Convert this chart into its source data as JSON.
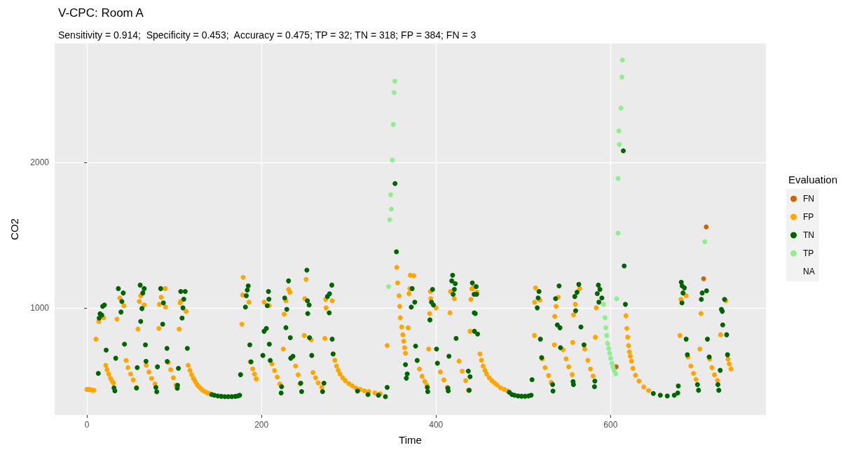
{
  "chart_data": {
    "type": "scatter",
    "title": "V-CPC: Room A",
    "subtitle": "Sensitivity = 0.914;  Specificity = 0.453;  Accuracy = 0.475; TP = 32; TN = 318; FP = 384; FN = 3",
    "xlabel": "Time",
    "ylabel": "CO2",
    "legend_title": "Evaluation",
    "legend": "right",
    "grid": true,
    "marker": "circle",
    "xlim": [
      -37,
      778
    ],
    "xticks": [
      0,
      200,
      400,
      600
    ],
    "ylim": [
      264,
      2816
    ],
    "yticks": [
      1000,
      2000
    ],
    "series": [
      {
        "name": "FN",
        "color": "#cd6600",
        "x": [
          606.4,
          706.6,
          709.6
        ],
        "values": [
          595,
          1200,
          1556
        ]
      },
      {
        "name": "FP",
        "color": "#ffa500",
        "x": [
          0,
          2,
          4,
          6,
          8,
          10.4,
          13.6,
          19,
          21.6,
          23,
          25,
          27,
          29,
          30.4,
          34.4,
          37.6,
          42.4,
          44.8,
          47,
          50,
          53,
          56.8,
          58.4,
          60,
          61.6,
          65.6,
          68,
          71,
          74,
          78,
          82.4,
          83,
          85,
          89.6,
          90,
          93,
          96,
          99,
          102,
          105.6,
          106.8,
          107.5,
          113.6,
          116,
          118,
          120,
          122,
          124,
          126,
          128,
          130,
          132,
          135,
          138,
          141,
          177.6,
          178.4,
          179,
          185.6,
          187,
          190,
          192,
          194,
          203,
          208.8,
          212,
          215,
          218,
          221,
          225,
          226,
          228,
          231,
          232.5,
          236,
          239,
          242,
          244,
          249,
          249.6,
          251,
          257,
          259,
          262,
          265,
          269,
          272.6,
          273.6,
          274,
          281,
          282.4,
          284,
          286,
          288,
          290,
          293,
          296,
          300,
          304,
          308,
          313,
          318,
          323,
          330,
          336,
          344,
          355,
          356,
          357.6,
          358.4,
          359,
          360.6,
          362,
          363,
          364,
          365,
          368,
          369,
          370,
          370.5,
          374.6,
          378.4,
          381,
          384,
          387,
          389.6,
          391.6,
          392.6,
          393.6,
          394,
          400,
          401.6,
          405,
          409,
          412.8,
          416,
          416.6,
          421,
          426.4,
          430,
          434,
          437,
          439,
          440,
          441,
          442.5,
          447,
          450.4,
          452,
          454,
          456,
          458,
          461,
          464,
          467,
          470,
          474,
          478,
          482,
          512.8,
          513,
          514,
          519,
          521.6,
          525,
          529,
          532,
          535.6,
          536,
          537.6,
          540,
          545.6,
          549,
          552,
          556,
          556.6,
          557.6,
          559.6,
          564.6,
          570.4,
          574,
          577,
          580,
          582.6,
          583.6,
          617.6,
          618.6,
          619.6,
          620.6,
          621.6,
          622.6,
          624,
          625.6,
          628.6,
          632.6,
          638,
          643.6,
          679.5,
          680.6,
          686.6,
          688.6,
          692,
          695,
          698,
          702.4,
          703.6,
          713.6,
          716,
          719,
          722.6,
          726,
          732,
          734.6,
          736,
          738
        ],
        "values": [
          440,
          440,
          438,
          435,
          435,
          785,
          907,
          932,
          605,
          575,
          545,
          515,
          495,
          483,
          922,
          1068,
          1015,
          639,
          590,
          545,
          505,
          454,
          854,
          1044,
          1083,
          1020,
          605,
          560,
          515,
          478,
          859,
          1024,
          1073,
          1132,
          1005,
          624,
          575,
          520,
          468,
          854,
          1034,
          1044,
          976,
          605,
          570,
          540,
          515,
          495,
          475,
          460,
          448,
          436,
          425,
          416,
          410,
          888,
          1088,
          1210,
          1039,
          629,
          580,
          545,
          512,
          1039,
          1015,
          615,
          570,
          525,
          478,
          717,
          956,
          1049,
          1127,
          1107,
          663,
          600,
          540,
          478,
          810,
          1063,
          1195,
          781,
          556,
          520,
          485,
          454,
          790,
          1058,
          1000,
          1049,
          683,
          640,
          600,
          570,
          545,
          520,
          500,
          480,
          465,
          450,
          440,
          430,
          425,
          415,
          410,
          741,
          1278,
          1171,
          1083,
          1010,
          932,
          868,
          815,
          771,
          727,
          688,
          863,
          1098,
          1132,
          1224,
          1220,
          639,
          580,
          530,
          495,
          468,
          717,
          961,
          1112,
          1063,
          1000,
          620,
          560,
          505,
          454,
          966,
          1112,
          1063,
          634,
          565,
          500,
          434,
          839,
          1058,
          1130,
          1137,
          1107,
          683,
          640,
          600,
          570,
          545,
          520,
          500,
          485,
          470,
          450,
          440,
          430,
          810,
          1039,
          1137,
          1054,
          650,
          590,
          535,
          488,
          746,
          941,
          1010,
          1073,
          712,
          650,
          595,
          541,
          763,
          951,
          1024,
          1132,
          717,
          640,
          580,
          532,
          798,
          1000,
          946,
          859,
          798,
          741,
          698,
          668,
          634,
          585,
          537,
          497,
          456,
          432,
          810,
          1058,
          1083,
          663,
          600,
          550,
          508,
          717,
          961,
          649,
          590,
          540,
          502,
          815,
          1049,
          648,
          615,
          580
        ]
      },
      {
        "name": "TN",
        "color": "#006400",
        "x": [
          13,
          14,
          15,
          17,
          18,
          20,
          22,
          31,
          32,
          33,
          36,
          39,
          40,
          41.6,
          43,
          56.8,
          57.6,
          61,
          61.6,
          63,
          64,
          65.6,
          67,
          67.7,
          79,
          80,
          80.8,
          84.5,
          86.8,
          87.6,
          91.7,
          92,
          103.5,
          103.8,
          104.8,
          107.5,
          109,
          110,
          111,
          112.6,
          115,
          143,
          146,
          150,
          154,
          158,
          162,
          166,
          170,
          173,
          175,
          176,
          181.6,
          182.6,
          183.7,
          184.8,
          186.6,
          188,
          201.6,
          203,
          205.6,
          206.6,
          208,
          208.5,
          209,
          210,
          222.5,
          223,
          226.6,
          228,
          229,
          231,
          233,
          233.5,
          236,
          245,
          246,
          252,
          252.6,
          253,
          254.6,
          255,
          257.6,
          270,
          271.6,
          275.6,
          277.6,
          278,
          280.6,
          281,
          282,
          310,
          322,
          334,
          342,
          344,
          353,
          354.6,
          365,
          366,
          367,
          371.6,
          372.6,
          375.6,
          376.6,
          378.4,
          390,
          390.5,
          393,
          394.8,
          396,
          397,
          400.6,
          401.6,
          413.6,
          414,
          414.8,
          418,
          419,
          419.6,
          421,
          422,
          423,
          437,
          438,
          439,
          441.6,
          443.6,
          443.8,
          444,
          445,
          446,
          446.5,
          447.6,
          484,
          487,
          490,
          494,
          498,
          502,
          506,
          509,
          510,
          516,
          517,
          518,
          519.6,
          521,
          533.6,
          534,
          537,
          539,
          541,
          542,
          542.6,
          557,
          557.5,
          559,
          560,
          561.6,
          563.6,
          566,
          569.6,
          581.6,
          582,
          584.8,
          586,
          586.6,
          587.8,
          590,
          614.6,
          615.6,
          617,
          649,
          657,
          665,
          673,
          677,
          677.6,
          681,
          681.8,
          682,
          683,
          684.6,
          686.6,
          688,
          699.6,
          700.8,
          704,
          705,
          710,
          711,
          713,
          723,
          724,
          725.6,
          727,
          728,
          728.5,
          730.6,
          733,
          734
        ],
        "values": [
          550,
          930,
          960,
          950,
          1010,
          1020,
          710,
          450,
          430,
          654,
          1132,
          971,
          1044,
          1102,
          751,
          449,
          590,
          1156,
          907,
          995,
          1102,
          1132,
          746,
          633,
          454,
          424,
          595,
          1132,
          888,
          1034,
          722,
          632,
          448,
          468,
          585,
          1112,
          930,
          1000,
          1059,
          1112,
          722,
          405,
          400,
          395,
          392,
          390,
          390,
          390,
          392,
          395,
          400,
          541,
          1005,
          1083,
          1122,
          1151,
          746,
          629,
          673,
          839,
          859,
          1015,
          1112,
          1059,
          751,
          639,
          415,
          459,
          1068,
          864,
          990,
          1185,
          795,
          654,
          668,
          483,
          425,
          1259,
          1049,
          961,
          1020,
          795,
          673,
          425,
          483,
          1078,
          966,
          1097,
          1156,
          785,
          683,
          429,
          405,
          400,
          390,
          454,
          1854,
          1385,
          610,
          517,
          546,
          1005,
          1132,
          1039,
          737,
          639,
          454,
          425,
          917,
          1039,
          1127,
          1020,
          717,
          620,
          449,
          430,
          668,
          1185,
          1224,
          1093,
          1127,
          1166,
          790,
          566,
          434,
          527,
          1171,
          1093,
          966,
          839,
          961,
          1146,
          1093,
          820,
          420,
          405,
          400,
          395,
          393,
          393,
          395,
          400,
          507,
          1000,
          1068,
          1112,
          785,
          658,
          473,
          429,
          1063,
          883,
          1151,
          863,
          727,
          493,
          473,
          1078,
          980,
          1107,
          1161,
          868,
          746,
          459,
          497,
          1098,
          1156,
          1039,
          1127,
          1068,
          2078,
          1288,
          1024,
          412,
          400,
          395,
          400,
          415,
          463,
          1176,
          1034,
          1151,
          1102,
          1137,
          785,
          678,
          473,
          434,
          1058,
          1102,
          1117,
          785,
          663,
          473,
          434,
          571,
          990,
          976,
          883,
          1058,
          815,
          678
        ]
      },
      {
        "name": "TP",
        "color": "#90ee90",
        "x": [
          345.6,
          347,
          348,
          348.8,
          350,
          351,
          352,
          352.8,
          592,
          593.6,
          594.6,
          595.6,
          596.6,
          598,
          599,
          600,
          601.6,
          602.6,
          604,
          606,
          607,
          608.6,
          608.6,
          609.6,
          610,
          612,
          613,
          613.6,
          708
        ],
        "values": [
          1146,
          1605,
          1776,
          1678,
          2015,
          2259,
          2478,
          2556,
          1024,
          932,
          863,
          810,
          756,
          722,
          688,
          654,
          620,
          595,
          571,
          546,
          1063,
          1512,
          1888,
          2215,
          2122,
          2371,
          2585,
          2702,
          1454
        ]
      },
      {
        "name": "NA"
      }
    ]
  }
}
